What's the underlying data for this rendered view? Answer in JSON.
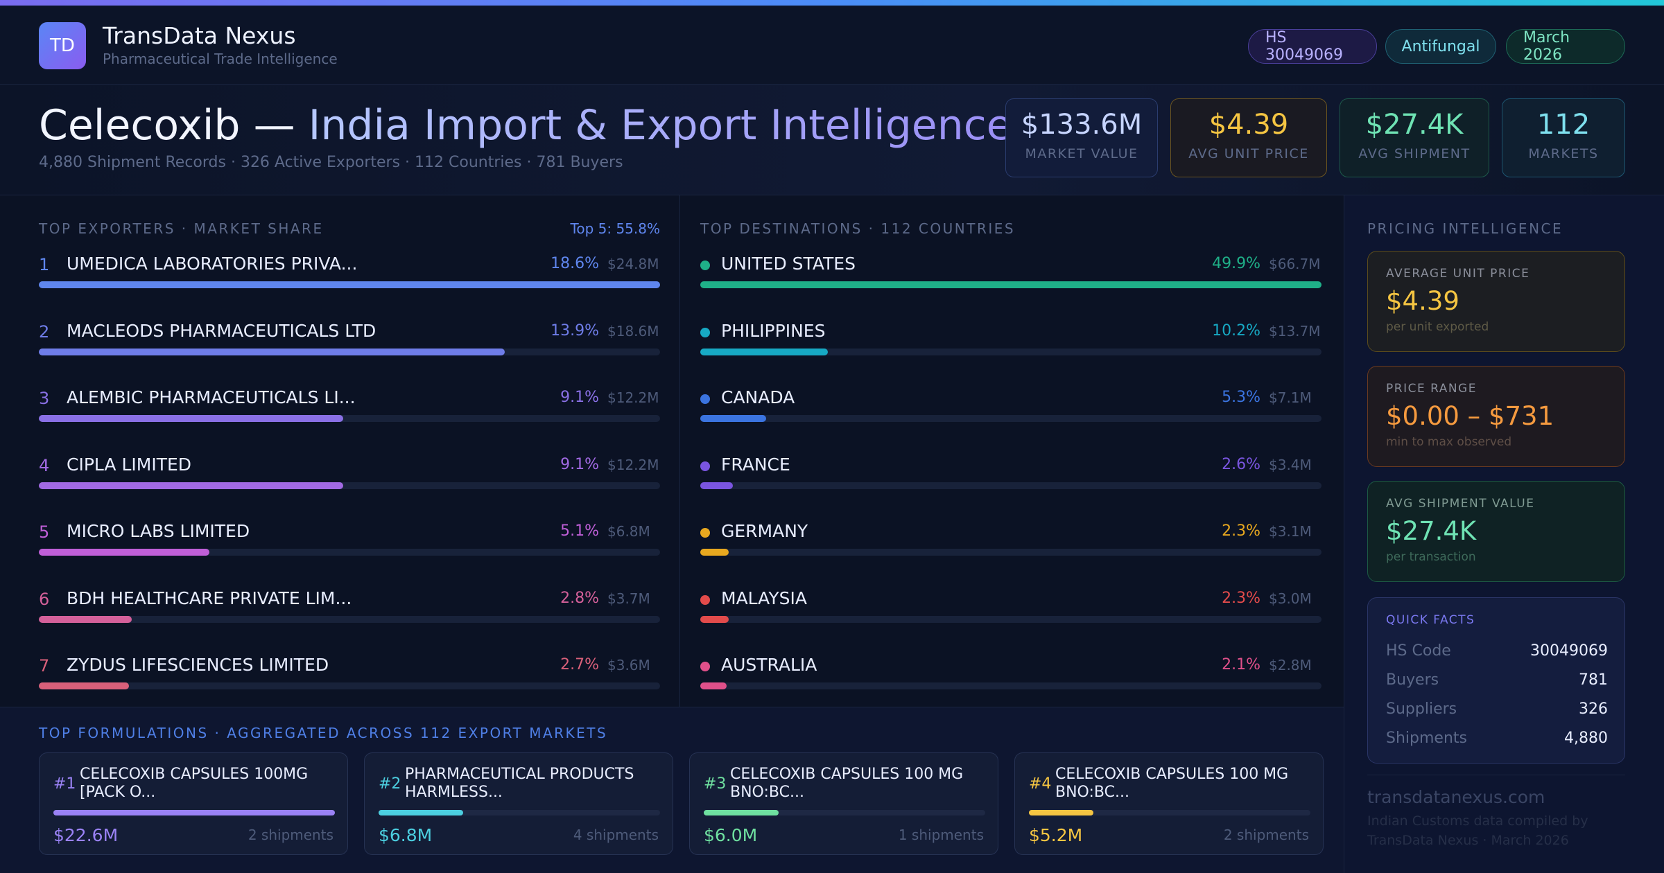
{
  "brand": {
    "initials": "TD",
    "name": "TransData Nexus",
    "tagline": "Pharmaceutical Trade Intelligence"
  },
  "pills": [
    "HS 30049069",
    "Antifungal",
    "March 2026"
  ],
  "hero": {
    "title_part1": "Celecoxib —",
    "title_part2": "India Import & Export Intelligence",
    "subtitle": "4,880 Shipment Records · 326 Active Exporters · 112 Countries · 781 Buyers"
  },
  "kpis": [
    {
      "value": "$133.6M",
      "label": "MARKET VALUE"
    },
    {
      "value": "$4.39",
      "label": "AVG UNIT PRICE"
    },
    {
      "value": "$27.4K",
      "label": "AVG SHIPMENT"
    },
    {
      "value": "112",
      "label": "MARKETS"
    }
  ],
  "exporters": {
    "title": "TOP EXPORTERS · MARKET SHARE",
    "badge": "Top 5: 55.8%",
    "items": [
      {
        "rank": "1",
        "name": "UMEDICA LABORATORIES PRIVA...",
        "pct": "18.6%",
        "amt": "$24.8M",
        "share": 1.0
      },
      {
        "rank": "2",
        "name": "MACLEODS PHARMACEUTICALS LTD",
        "pct": "13.9%",
        "amt": "$18.6M",
        "share": 0.75
      },
      {
        "rank": "3",
        "name": "ALEMBIC PHARMACEUTICALS LI...",
        "pct": "9.1%",
        "amt": "$12.2M",
        "share": 0.49
      },
      {
        "rank": "4",
        "name": "CIPLA LIMITED",
        "pct": "9.1%",
        "amt": "$12.2M",
        "share": 0.49
      },
      {
        "rank": "5",
        "name": "MICRO LABS LIMITED",
        "pct": "5.1%",
        "amt": "$6.8M",
        "share": 0.275
      },
      {
        "rank": "6",
        "name": "BDH HEALTHCARE PRIVATE LIM...",
        "pct": "2.8%",
        "amt": "$3.7M",
        "share": 0.15
      },
      {
        "rank": "7",
        "name": "ZYDUS LIFESCIENCES LIMITED",
        "pct": "2.7%",
        "amt": "$3.6M",
        "share": 0.145
      }
    ]
  },
  "destinations": {
    "title": "TOP DESTINATIONS · 112 COUNTRIES",
    "items": [
      {
        "name": "UNITED STATES",
        "pct": "49.9%",
        "amt": "$66.7M",
        "share": 1.0
      },
      {
        "name": "PHILIPPINES",
        "pct": "10.2%",
        "amt": "$13.7M",
        "share": 0.205
      },
      {
        "name": "CANADA",
        "pct": "5.3%",
        "amt": "$7.1M",
        "share": 0.106
      },
      {
        "name": "FRANCE",
        "pct": "2.6%",
        "amt": "$3.4M",
        "share": 0.052
      },
      {
        "name": "GERMANY",
        "pct": "2.3%",
        "amt": "$3.1M",
        "share": 0.046
      },
      {
        "name": "MALAYSIA",
        "pct": "2.3%",
        "amt": "$3.0M",
        "share": 0.046
      },
      {
        "name": "AUSTRALIA",
        "pct": "2.1%",
        "amt": "$2.8M",
        "share": 0.042
      }
    ]
  },
  "formulations": {
    "title": "TOP FORMULATIONS · AGGREGATED ACROSS 112 EXPORT MARKETS",
    "items": [
      {
        "no": "#1",
        "name": "CELECOXIB CAPSULES 100MG [PACK O...",
        "value": "$22.6M",
        "shipments": "2 shipments",
        "share": 1.0
      },
      {
        "no": "#2",
        "name": "PHARMACEUTICAL PRODUCTS HARMLESS...",
        "value": "$6.8M",
        "shipments": "4 shipments",
        "share": 0.3
      },
      {
        "no": "#3",
        "name": "CELECOXIB CAPSULES 100 MG BNO:BC...",
        "value": "$6.0M",
        "shipments": "1 shipments",
        "share": 0.265
      },
      {
        "no": "#4",
        "name": "CELECOXIB CAPSULES 100 MG BNO:BC...",
        "value": "$5.2M",
        "shipments": "2 shipments",
        "share": 0.23
      }
    ]
  },
  "pricing": {
    "title": "PRICING INTELLIGENCE",
    "avg": {
      "label": "AVERAGE UNIT PRICE",
      "value": "$4.39",
      "sub": "per unit exported"
    },
    "range": {
      "label": "PRICE RANGE",
      "value": "$0.00 – $731",
      "sub": "min to max observed"
    },
    "ship": {
      "label": "AVG SHIPMENT VALUE",
      "value": "$27.4K",
      "sub": "per transaction"
    }
  },
  "facts": {
    "title": "QUICK FACTS",
    "rows": [
      {
        "k": "HS Code",
        "v": "30049069"
      },
      {
        "k": "Buyers",
        "v": "781"
      },
      {
        "k": "Suppliers",
        "v": "326"
      },
      {
        "k": "Shipments",
        "v": "4,880"
      }
    ]
  },
  "footer": {
    "domain": "transdatanexus.com",
    "note1": "Indian Customs data compiled by",
    "note2": "TransData Nexus · March 2026"
  },
  "colors": {
    "exp": [
      "#5f86ee",
      "#6f7de9",
      "#8a70e6",
      "#a26ae4",
      "#c05fd8",
      "#d4609a",
      "#d9607a"
    ],
    "dest": [
      "#1fb088",
      "#17a9c4",
      "#3b74e0",
      "#7a55e0",
      "#e8a81f",
      "#e24b4b",
      "#e0508a"
    ]
  }
}
